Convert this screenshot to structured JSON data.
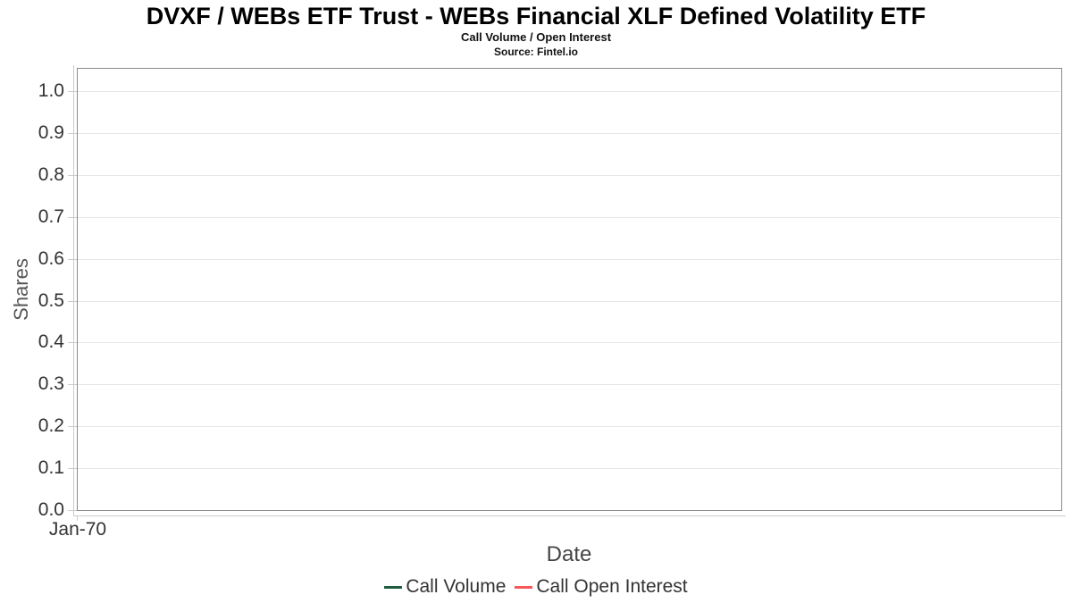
{
  "chart_data": {
    "type": "line",
    "title": "DVXF / WEBs ETF Trust - WEBs Financial XLF Defined Volatility ETF",
    "subtitle": "Call Volume / Open Interest",
    "source": "Source: Fintel.io",
    "xlabel": "Date",
    "ylabel": "Shares",
    "ylim": [
      0,
      1.055
    ],
    "yticks": [
      0.0,
      0.1,
      0.2,
      0.3,
      0.4,
      0.5,
      0.6,
      0.7,
      0.8,
      0.9,
      1.0
    ],
    "ytick_labels": [
      "0.0",
      "0.1",
      "0.2",
      "0.3",
      "0.4",
      "0.5",
      "0.6",
      "0.7",
      "0.8",
      "0.9",
      "1.0"
    ],
    "xtick_labels": [
      "Jan-70"
    ],
    "grid": true,
    "legend_position": "bottom",
    "series": [
      {
        "name": "Call Volume",
        "color": "#1f5c3d",
        "x": [],
        "values": []
      },
      {
        "name": "Call Open Interest",
        "color": "#f9575c",
        "x": [],
        "values": []
      }
    ],
    "colors": {
      "plot_border": "#8a8a8a",
      "gridline": "#e6e6e6",
      "axis_line": "#cccccc",
      "tick_label": "#333333"
    }
  }
}
